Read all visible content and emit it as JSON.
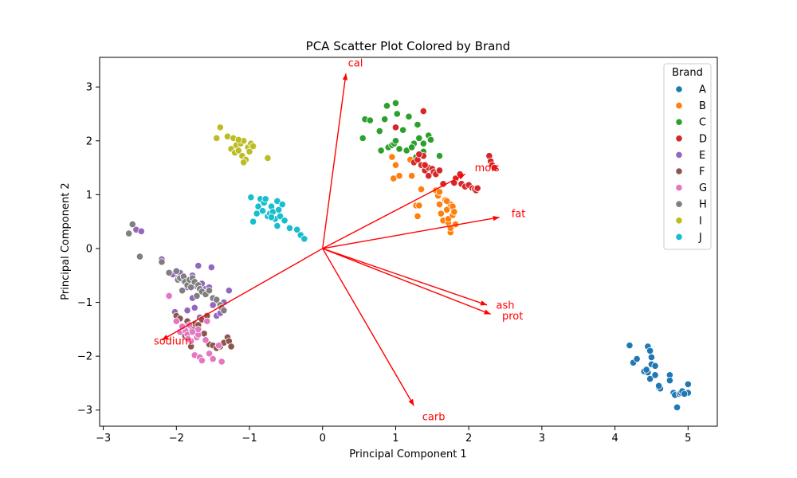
{
  "chart_data": {
    "type": "scatter",
    "title": "PCA Scatter Plot Colored by Brand",
    "xlabel": "Principal Component 1",
    "ylabel": "Principal Component 2",
    "xlim": [
      -3.05,
      5.4
    ],
    "ylim": [
      -3.3,
      3.55
    ],
    "xticks": [
      -3,
      -2,
      -1,
      0,
      1,
      2,
      3,
      4,
      5
    ],
    "yticks": [
      -3,
      -2,
      -1,
      0,
      1,
      2,
      3
    ],
    "grid": false,
    "legend": {
      "title": "Brand",
      "placement": "top-right"
    },
    "arrow_color": "#ff0000",
    "series": [
      {
        "name": "A",
        "color": "#1f77b4",
        "points": [
          [
            4.2,
            -1.8
          ],
          [
            4.25,
            -2.12
          ],
          [
            4.3,
            -2.05
          ],
          [
            4.4,
            -2.28
          ],
          [
            4.45,
            -1.82
          ],
          [
            4.48,
            -1.9
          ],
          [
            4.5,
            -2.02
          ],
          [
            4.45,
            -2.3
          ],
          [
            4.48,
            -2.42
          ],
          [
            4.5,
            -2.15
          ],
          [
            4.55,
            -2.18
          ],
          [
            4.55,
            -2.35
          ],
          [
            4.6,
            -2.58
          ],
          [
            4.62,
            -2.6
          ],
          [
            4.75,
            -2.35
          ],
          [
            4.75,
            -2.45
          ],
          [
            4.8,
            -2.68
          ],
          [
            4.82,
            -2.72
          ],
          [
            4.85,
            -2.95
          ],
          [
            4.88,
            -2.7
          ],
          [
            4.9,
            -2.68
          ],
          [
            4.92,
            -2.65
          ],
          [
            5.0,
            -2.52
          ],
          [
            5.0,
            -2.68
          ],
          [
            4.95,
            -2.7
          ],
          [
            4.6,
            -2.55
          ],
          [
            4.43,
            -2.25
          ]
        ]
      },
      {
        "name": "B",
        "color": "#ff7f0e",
        "points": [
          [
            0.95,
            1.7
          ],
          [
            1.0,
            1.55
          ],
          [
            0.97,
            1.3
          ],
          [
            1.05,
            1.35
          ],
          [
            1.2,
            1.65
          ],
          [
            1.22,
            1.35
          ],
          [
            1.28,
            0.8
          ],
          [
            1.3,
            0.6
          ],
          [
            1.32,
            0.8
          ],
          [
            1.35,
            1.1
          ],
          [
            1.55,
            1.08
          ],
          [
            1.58,
            0.98
          ],
          [
            1.6,
            0.82
          ],
          [
            1.6,
            1.05
          ],
          [
            1.62,
            0.65
          ],
          [
            1.65,
            0.52
          ],
          [
            1.7,
            0.72
          ],
          [
            1.72,
            0.48
          ],
          [
            1.75,
            0.82
          ],
          [
            1.72,
            0.55
          ],
          [
            1.78,
            0.78
          ],
          [
            1.78,
            0.62
          ],
          [
            1.75,
            0.3
          ],
          [
            1.8,
            0.68
          ],
          [
            1.82,
            0.45
          ],
          [
            1.68,
            0.9
          ],
          [
            1.7,
            0.88
          ],
          [
            1.75,
            0.38
          ]
        ]
      },
      {
        "name": "C",
        "color": "#2ca02c",
        "points": [
          [
            0.55,
            2.05
          ],
          [
            0.58,
            2.4
          ],
          [
            0.65,
            2.38
          ],
          [
            0.78,
            2.18
          ],
          [
            0.8,
            1.82
          ],
          [
            0.85,
            2.4
          ],
          [
            0.88,
            2.65
          ],
          [
            0.9,
            1.88
          ],
          [
            0.95,
            1.92
          ],
          [
            0.98,
            1.95
          ],
          [
            1.0,
            2.0
          ],
          [
            1.0,
            2.7
          ],
          [
            1.02,
            2.5
          ],
          [
            1.05,
            1.85
          ],
          [
            1.1,
            2.2
          ],
          [
            1.15,
            1.82
          ],
          [
            1.18,
            2.45
          ],
          [
            1.25,
            1.95
          ],
          [
            1.28,
            1.7
          ],
          [
            1.32,
            2.05
          ],
          [
            1.38,
            1.8
          ],
          [
            1.45,
            2.1
          ],
          [
            1.6,
            1.72
          ],
          [
            1.48,
            2.02
          ],
          [
            1.22,
            1.88
          ],
          [
            1.3,
            2.3
          ],
          [
            1.38,
            1.95
          ]
        ]
      },
      {
        "name": "D",
        "color": "#d62728",
        "points": [
          [
            1.38,
            2.55
          ],
          [
            1.0,
            2.25
          ],
          [
            1.25,
            1.6
          ],
          [
            1.3,
            1.65
          ],
          [
            1.35,
            1.55
          ],
          [
            1.38,
            1.72
          ],
          [
            1.4,
            1.45
          ],
          [
            1.45,
            1.5
          ],
          [
            1.45,
            1.35
          ],
          [
            1.5,
            1.48
          ],
          [
            1.52,
            1.42
          ],
          [
            1.55,
            1.38
          ],
          [
            1.6,
            1.45
          ],
          [
            1.65,
            1.2
          ],
          [
            1.82,
            1.3
          ],
          [
            1.88,
            1.38
          ],
          [
            1.9,
            1.2
          ],
          [
            1.95,
            1.15
          ],
          [
            2.0,
            1.18
          ],
          [
            2.05,
            1.12
          ],
          [
            2.08,
            1.1
          ],
          [
            2.1,
            1.08
          ],
          [
            2.28,
            1.72
          ],
          [
            2.3,
            1.62
          ],
          [
            2.32,
            1.55
          ],
          [
            2.35,
            1.5
          ],
          [
            2.12,
            1.12
          ],
          [
            1.8,
            1.22
          ],
          [
            1.4,
            1.55
          ],
          [
            1.32,
            1.75
          ]
        ]
      },
      {
        "name": "E",
        "color": "#9467bd",
        "points": [
          [
            -2.55,
            0.35
          ],
          [
            -2.48,
            0.32
          ],
          [
            -2.2,
            -0.2
          ],
          [
            -2.05,
            -0.48
          ],
          [
            -1.98,
            -0.55
          ],
          [
            -1.95,
            -0.45
          ],
          [
            -1.9,
            -0.6
          ],
          [
            -1.85,
            -0.72
          ],
          [
            -1.8,
            -0.65
          ],
          [
            -1.78,
            -0.5
          ],
          [
            -1.72,
            -0.7
          ],
          [
            -1.7,
            -0.32
          ],
          [
            -1.65,
            -0.65
          ],
          [
            -1.6,
            -0.75
          ],
          [
            -1.55,
            -0.72
          ],
          [
            -1.52,
            -0.35
          ],
          [
            -1.48,
            -1.0
          ],
          [
            -1.45,
            -1.25
          ],
          [
            -1.4,
            -1.2
          ],
          [
            -1.35,
            -1.0
          ],
          [
            -1.28,
            -0.78
          ],
          [
            -1.75,
            -1.1
          ],
          [
            -1.68,
            -1.28
          ],
          [
            -1.85,
            -1.15
          ],
          [
            -1.62,
            -0.82
          ],
          [
            -2.02,
            -1.18
          ],
          [
            -1.78,
            -0.92
          ],
          [
            -1.5,
            -1.05
          ]
        ]
      },
      {
        "name": "F",
        "color": "#8c564b",
        "points": [
          [
            -2.0,
            -1.25
          ],
          [
            -1.95,
            -1.3
          ],
          [
            -1.9,
            -1.45
          ],
          [
            -1.85,
            -1.35
          ],
          [
            -1.82,
            -1.55
          ],
          [
            -1.8,
            -1.82
          ],
          [
            -1.78,
            -1.48
          ],
          [
            -1.75,
            -1.4
          ],
          [
            -1.72,
            -1.65
          ],
          [
            -1.7,
            -1.42
          ],
          [
            -1.65,
            -1.32
          ],
          [
            -1.62,
            -1.58
          ],
          [
            -1.6,
            -1.7
          ],
          [
            -1.55,
            -1.78
          ],
          [
            -1.5,
            -1.8
          ],
          [
            -1.45,
            -1.85
          ],
          [
            -1.4,
            -1.82
          ],
          [
            -1.35,
            -1.75
          ],
          [
            -1.3,
            -1.65
          ],
          [
            -1.28,
            -1.72
          ],
          [
            -1.25,
            -1.82
          ],
          [
            -1.88,
            -1.62
          ],
          [
            -1.92,
            -1.52
          ],
          [
            -1.58,
            -1.25
          ]
        ]
      },
      {
        "name": "G",
        "color": "#e377c2",
        "points": [
          [
            -2.1,
            -0.88
          ],
          [
            -2.0,
            -1.35
          ],
          [
            -1.95,
            -1.55
          ],
          [
            -1.9,
            -1.48
          ],
          [
            -1.88,
            -1.52
          ],
          [
            -1.85,
            -1.6
          ],
          [
            -1.82,
            -1.42
          ],
          [
            -1.8,
            -1.72
          ],
          [
            -1.78,
            -1.55
          ],
          [
            -1.75,
            -1.98
          ],
          [
            -1.72,
            -1.65
          ],
          [
            -1.7,
            -1.6
          ],
          [
            -1.68,
            -2.02
          ],
          [
            -1.65,
            -2.08
          ],
          [
            -1.6,
            -1.7
          ],
          [
            -1.55,
            -1.95
          ],
          [
            -1.5,
            -2.05
          ],
          [
            -1.42,
            -1.8
          ],
          [
            -1.38,
            -2.1
          ],
          [
            -1.58,
            -1.35
          ],
          [
            -1.92,
            -1.45
          ],
          [
            -1.84,
            -1.68
          ],
          [
            -1.7,
            -1.5
          ]
        ]
      },
      {
        "name": "H",
        "color": "#7f7f7f",
        "points": [
          [
            -2.65,
            0.28
          ],
          [
            -2.6,
            0.45
          ],
          [
            -2.5,
            -0.15
          ],
          [
            -2.2,
            -0.25
          ],
          [
            -2.1,
            -0.45
          ],
          [
            -2.0,
            -0.42
          ],
          [
            -1.98,
            -0.58
          ],
          [
            -1.95,
            -0.55
          ],
          [
            -1.9,
            -0.52
          ],
          [
            -1.88,
            -0.62
          ],
          [
            -1.85,
            -0.68
          ],
          [
            -1.82,
            -0.58
          ],
          [
            -1.8,
            -0.72
          ],
          [
            -1.78,
            -0.55
          ],
          [
            -1.75,
            -0.62
          ],
          [
            -1.7,
            -0.68
          ],
          [
            -1.68,
            -0.75
          ],
          [
            -1.65,
            -0.8
          ],
          [
            -1.6,
            -0.85
          ],
          [
            -1.55,
            -0.78
          ],
          [
            -1.5,
            -0.92
          ],
          [
            -1.45,
            -0.95
          ],
          [
            -1.4,
            -1.05
          ],
          [
            -1.38,
            -1.1
          ],
          [
            -1.35,
            -1.15
          ],
          [
            -1.92,
            -0.78
          ],
          [
            -1.72,
            -0.88
          ]
        ]
      },
      {
        "name": "I",
        "color": "#bcbd22",
        "points": [
          [
            -1.45,
            2.05
          ],
          [
            -1.4,
            2.25
          ],
          [
            -1.3,
            2.08
          ],
          [
            -1.25,
            1.85
          ],
          [
            -1.22,
            2.05
          ],
          [
            -1.2,
            1.78
          ],
          [
            -1.18,
            1.92
          ],
          [
            -1.15,
            1.82
          ],
          [
            -1.12,
            1.95
          ],
          [
            -1.1,
            1.72
          ],
          [
            -1.08,
            2.0
          ],
          [
            -1.05,
            1.65
          ],
          [
            -1.02,
            1.88
          ],
          [
            -1.0,
            1.8
          ],
          [
            -0.98,
            1.95
          ],
          [
            -0.95,
            1.9
          ],
          [
            -0.75,
            1.68
          ],
          [
            -1.08,
            1.6
          ],
          [
            -1.15,
            2.02
          ]
        ]
      },
      {
        "name": "J",
        "color": "#17becf",
        "points": [
          [
            -0.98,
            0.95
          ],
          [
            -0.95,
            0.5
          ],
          [
            -0.9,
            0.65
          ],
          [
            -0.88,
            0.78
          ],
          [
            -0.85,
            0.92
          ],
          [
            -0.82,
            0.7
          ],
          [
            -0.8,
            0.85
          ],
          [
            -0.78,
            0.92
          ],
          [
            -0.75,
            0.6
          ],
          [
            -0.72,
            0.65
          ],
          [
            -0.7,
            0.78
          ],
          [
            -0.68,
            0.68
          ],
          [
            -0.65,
            0.55
          ],
          [
            -0.62,
            0.88
          ],
          [
            -0.6,
            0.72
          ],
          [
            -0.58,
            0.6
          ],
          [
            -0.55,
            0.82
          ],
          [
            -0.52,
            0.52
          ],
          [
            -0.45,
            0.38
          ],
          [
            -0.35,
            0.35
          ],
          [
            -0.3,
            0.25
          ],
          [
            -0.25,
            0.18
          ],
          [
            -0.62,
            0.42
          ],
          [
            -0.7,
            0.58
          ]
        ]
      }
    ],
    "loadings": [
      {
        "name": "cal",
        "x": 0.32,
        "y": 3.25,
        "label_x": 0.45,
        "label_y": 3.45
      },
      {
        "name": "mois",
        "x": 1.95,
        "y": 1.38,
        "label_x": 2.25,
        "label_y": 1.5
      },
      {
        "name": "fat",
        "x": 2.42,
        "y": 0.58,
        "label_x": 2.68,
        "label_y": 0.65
      },
      {
        "name": "ash",
        "x": 2.25,
        "y": -1.05,
        "label_x": 2.5,
        "label_y": -1.05
      },
      {
        "name": "prot",
        "x": 2.3,
        "y": -1.22,
        "label_x": 2.6,
        "label_y": -1.25
      },
      {
        "name": "carb",
        "x": 1.25,
        "y": -2.92,
        "label_x": 1.52,
        "label_y": -3.12
      },
      {
        "name": "sodium",
        "x": -2.2,
        "y": -1.7,
        "label_x": -2.05,
        "label_y": -1.72
      }
    ]
  }
}
